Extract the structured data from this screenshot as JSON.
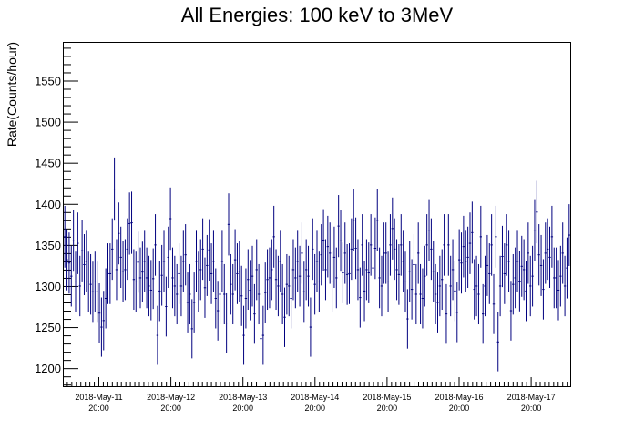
{
  "chart_data": {
    "type": "scatter",
    "title": "All Energies:  100 keV to 3MeV",
    "ylabel": "Rate(Counts/hour)",
    "xlabel": "",
    "ylim": [
      1178,
      1596
    ],
    "xlim": [
      0,
      1
    ],
    "grid": false,
    "legend": "none",
    "colors": {
      "series": "#00007f",
      "axes": "#000000"
    },
    "yticks": [
      1200,
      1250,
      1300,
      1350,
      1400,
      1450,
      1500,
      1550
    ],
    "x_tick_labels": [
      {
        "date": "2018-May-11",
        "time": "20:00"
      },
      {
        "date": "2018-May-12",
        "time": "20:00"
      },
      {
        "date": "2018-May-13",
        "time": "20:00"
      },
      {
        "date": "2018-May-14",
        "time": "20:00"
      },
      {
        "date": "2018-May-15",
        "time": "20:00"
      },
      {
        "date": "2018-May-16",
        "time": "20:00"
      },
      {
        "date": "2018-May-17",
        "time": "20:00"
      }
    ],
    "series": [
      {
        "values": [
          1360,
          1332,
          1328,
          1312,
          1355,
          1305,
          1352,
          1300,
          1343,
          1326,
          1330,
          1305,
          1302,
          1293,
          1305,
          1293,
          1267,
          1250,
          1258,
          1285,
          1315,
          1315,
          1345,
          1418,
          1320,
          1364,
          1335,
          1318,
          1320,
          1345,
          1376,
          1377,
          1308,
          1305,
          1329,
          1310,
          1317,
          1330,
          1310,
          1300,
          1295,
          1309,
          1350,
          1240,
          1294,
          1313,
          1330,
          1275,
          1335,
          1382,
          1310,
          1300,
          1290,
          1315,
          1300,
          1330,
          1338,
          1280,
          1290,
          1248,
          1280,
          1330,
          1305,
          1320,
          1345,
          1298,
          1325,
          1344,
          1315,
          1330,
          1285,
          1270,
          1290,
          1330,
          1290,
          1255,
          1375,
          1302,
          1290,
          1332,
          1315,
          1318,
          1288,
          1240,
          1285,
          1308,
          1295,
          1312,
          1266,
          1320,
          1290,
          1236,
          1240,
          1292,
          1308,
          1310,
          1320,
          1360,
          1308,
          1300,
          1330,
          1290,
          1262,
          1302,
          1300,
          1285,
          1320,
          1310,
          1330,
          1312,
          1340,
          1293,
          1320,
          1312,
          1250,
          1345,
          1302,
          1330,
          1305,
          1338,
          1356,
          1320,
          1348,
          1340,
          1305,
          1335,
          1310,
          1373,
          1355,
          1316,
          1340,
          1314,
          1315,
          1345,
          1380,
          1346,
          1320,
          1286,
          1350,
          1294,
          1320,
          1316,
          1350,
          1322,
          1346,
          1380,
          1310,
          1300,
          1340,
          1340,
          1305,
          1350,
          1370,
          1345,
          1320,
          1314,
          1350,
          1330,
          1305,
          1260,
          1318,
          1296,
          1326,
          1290,
          1340,
          1290,
          1285,
          1312,
          1350,
          1368,
          1345,
          1318,
          1290,
          1280,
          1300,
          1308,
          1350,
          1266,
          1350,
          1300,
          1320,
          1294,
          1268,
          1332,
          1328,
          1348,
          1330,
          1335,
          1352,
          1365,
          1296,
          1300,
          1290,
          1360,
          1266,
          1300,
          1325,
          1315,
          1350,
          1278,
          1360,
          1232,
          1300,
          1336,
          1315,
          1350,
          1330,
          1270,
          1302,
          1310,
          1330,
          1306,
          1324,
          1320,
          1294,
          1340,
          1300,
          1312,
          1368,
          1390,
          1338,
          1325,
          1296,
          1340,
          1345,
          1335,
          1360,
          1310,
          1310,
          1295,
          1312,
          1340,
          1300,
          1322,
          1362
        ]
      }
    ]
  }
}
